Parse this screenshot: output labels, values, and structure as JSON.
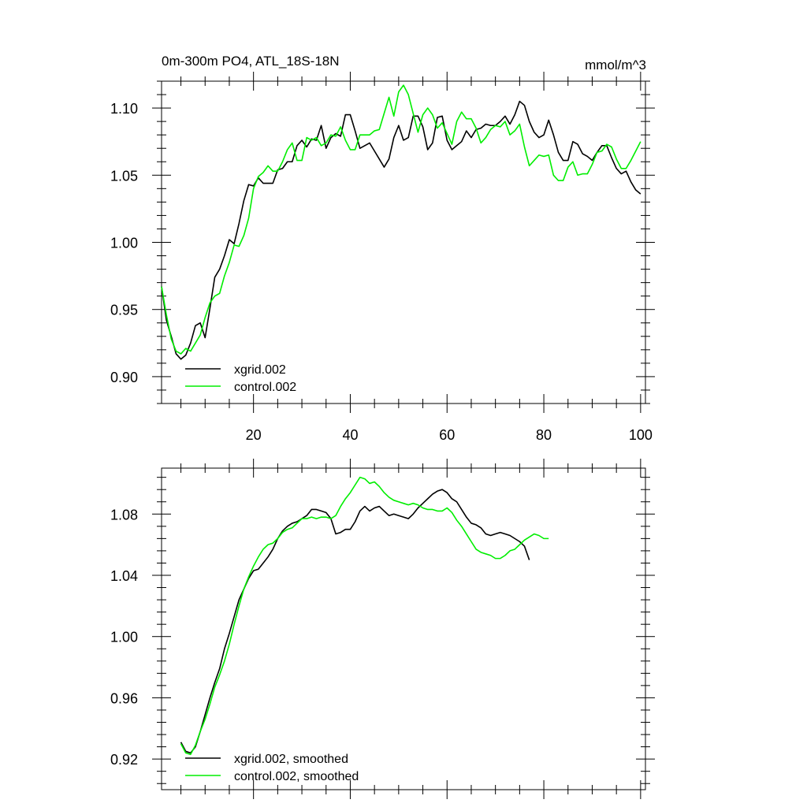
{
  "title_left": "0m-300m PO4, ATL_18S-18N",
  "title_right": "mmol/m^3",
  "chart_data": [
    {
      "type": "line",
      "xlim": [
        1,
        101
      ],
      "ylim": [
        0.88,
        1.12
      ],
      "xticks": [
        20,
        40,
        60,
        80,
        100
      ],
      "xtick_labels": [
        "20",
        "40",
        "60",
        "80",
        "100"
      ],
      "yticks": [
        0.9,
        0.95,
        1.0,
        1.05,
        1.1
      ],
      "ytick_labels": [
        "0.90",
        "0.95",
        "1.00",
        "1.05",
        "1.10"
      ],
      "grid": false,
      "legend_position": "bottom-left",
      "colors": [
        "#000000",
        "#00ee00"
      ],
      "x_start": 1,
      "series": [
        {
          "name": "xgrid.002",
          "values": [
            0.967,
            0.942,
            0.93,
            0.917,
            0.913,
            0.916,
            0.925,
            0.938,
            0.94,
            0.929,
            0.951,
            0.974,
            0.98,
            0.99,
            1.002,
            0.999,
            1.014,
            1.031,
            1.043,
            1.042,
            1.048,
            1.044,
            1.044,
            1.044,
            1.054,
            1.055,
            1.06,
            1.06,
            1.072,
            1.076,
            1.071,
            1.077,
            1.076,
            1.087,
            1.07,
            1.078,
            1.081,
            1.079,
            1.095,
            1.095,
            1.083,
            1.07,
            1.072,
            1.074,
            1.068,
            1.062,
            1.056,
            1.062,
            1.078,
            1.087,
            1.076,
            1.078,
            1.094,
            1.094,
            1.086,
            1.069,
            1.074,
            1.093,
            1.094,
            1.076,
            1.069,
            1.072,
            1.075,
            1.083,
            1.078,
            1.084,
            1.085,
            1.088,
            1.087,
            1.087,
            1.09,
            1.094,
            1.088,
            1.095,
            1.105,
            1.102,
            1.09,
            1.082,
            1.078,
            1.08,
            1.091,
            1.08,
            1.067,
            1.061,
            1.061,
            1.075,
            1.073,
            1.066,
            1.064,
            1.061,
            1.067,
            1.072,
            1.072,
            1.063,
            1.055,
            1.051,
            1.053,
            1.045,
            1.039,
            1.036
          ]
        },
        {
          "name": "control.002",
          "values": [
            0.967,
            0.946,
            0.928,
            0.919,
            0.917,
            0.921,
            0.919,
            0.925,
            0.931,
            0.944,
            0.955,
            0.96,
            0.962,
            0.975,
            0.985,
            0.998,
            0.997,
            1.005,
            1.018,
            1.04,
            1.049,
            1.052,
            1.057,
            1.053,
            1.053,
            1.06,
            1.069,
            1.074,
            1.061,
            1.061,
            1.078,
            1.076,
            1.078,
            1.072,
            1.074,
            1.08,
            1.079,
            1.086,
            1.076,
            1.069,
            1.069,
            1.08,
            1.08,
            1.08,
            1.083,
            1.084,
            1.096,
            1.108,
            1.094,
            1.112,
            1.117,
            1.11,
            1.096,
            1.082,
            1.095,
            1.1,
            1.095,
            1.085,
            1.089,
            1.081,
            1.073,
            1.09,
            1.097,
            1.092,
            1.092,
            1.085,
            1.074,
            1.078,
            1.084,
            1.087,
            1.086,
            1.09,
            1.08,
            1.083,
            1.088,
            1.071,
            1.057,
            1.061,
            1.065,
            1.064,
            1.065,
            1.05,
            1.046,
            1.046,
            1.056,
            1.06,
            1.05,
            1.051,
            1.051,
            1.058,
            1.067,
            1.068,
            1.073,
            1.071,
            1.062,
            1.055,
            1.055,
            1.061,
            1.068,
            1.075
          ]
        }
      ]
    },
    {
      "type": "line",
      "xlim": [
        1,
        101
      ],
      "ylim": [
        0.9,
        1.11
      ],
      "xticks": [
        20,
        40,
        60,
        80,
        100
      ],
      "yticks": [
        0.92,
        0.96,
        1.0,
        1.04,
        1.08
      ],
      "ytick_labels": [
        "0.92",
        "0.96",
        "1.00",
        "1.04",
        "1.08"
      ],
      "grid": false,
      "legend_position": "bottom-left",
      "colors": [
        "#000000",
        "#00ee00"
      ],
      "x_start": 5,
      "series": [
        {
          "name": "xgrid.002, smoothed",
          "values": [
            0.931,
            0.925,
            0.924,
            0.928,
            0.938,
            0.949,
            0.96,
            0.97,
            0.979,
            0.992,
            1.002,
            1.013,
            1.024,
            1.031,
            1.038,
            1.043,
            1.044,
            1.048,
            1.052,
            1.057,
            1.064,
            1.069,
            1.072,
            1.074,
            1.075,
            1.077,
            1.079,
            1.083,
            1.083,
            1.082,
            1.081,
            1.077,
            1.067,
            1.068,
            1.07,
            1.07,
            1.075,
            1.082,
            1.085,
            1.082,
            1.084,
            1.085,
            1.082,
            1.079,
            1.08,
            1.079,
            1.078,
            1.077,
            1.08,
            1.084,
            1.087,
            1.09,
            1.093,
            1.095,
            1.096,
            1.094,
            1.09,
            1.088,
            1.083,
            1.078,
            1.074,
            1.073,
            1.071,
            1.067,
            1.066,
            1.067,
            1.068,
            1.067,
            1.066,
            1.064,
            1.062,
            1.059,
            1.05
          ]
        },
        {
          "name": "control.002, smoothed",
          "values": [
            0.93,
            0.924,
            0.923,
            0.929,
            0.938,
            0.946,
            0.956,
            0.967,
            0.975,
            0.984,
            0.995,
            1.008,
            1.02,
            1.031,
            1.039,
            1.046,
            1.052,
            1.057,
            1.06,
            1.061,
            1.064,
            1.068,
            1.07,
            1.071,
            1.074,
            1.077,
            1.077,
            1.078,
            1.077,
            1.078,
            1.078,
            1.077,
            1.079,
            1.085,
            1.09,
            1.094,
            1.099,
            1.104,
            1.103,
            1.1,
            1.101,
            1.098,
            1.094,
            1.091,
            1.089,
            1.088,
            1.087,
            1.086,
            1.087,
            1.086,
            1.084,
            1.083,
            1.083,
            1.082,
            1.082,
            1.084,
            1.081,
            1.076,
            1.072,
            1.067,
            1.062,
            1.057,
            1.055,
            1.054,
            1.053,
            1.051,
            1.051,
            1.053,
            1.056,
            1.057,
            1.06,
            1.063,
            1.065,
            1.067,
            1.066,
            1.064,
            1.064
          ]
        }
      ]
    }
  ]
}
